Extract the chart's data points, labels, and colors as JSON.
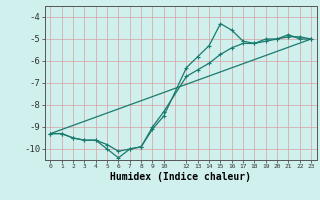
{
  "xlabel": "Humidex (Indice chaleur)",
  "ylabel": "",
  "xlim": [
    -0.5,
    23.5
  ],
  "ylim": [
    -10.5,
    -3.5
  ],
  "background_color": "#cff0ec",
  "grid_color": "#d9a0a0",
  "line_color": "#1a7a6e",
  "line1_x": [
    0,
    1,
    2,
    3,
    4,
    5,
    6,
    7,
    8,
    9,
    10,
    12,
    13,
    14,
    15,
    16,
    17,
    18,
    19,
    20,
    21,
    22,
    23
  ],
  "line1_y": [
    -9.3,
    -9.3,
    -9.5,
    -9.6,
    -9.6,
    -10.0,
    -10.4,
    -10.0,
    -9.9,
    -9.1,
    -8.5,
    -6.3,
    -5.8,
    -5.3,
    -4.3,
    -4.6,
    -5.1,
    -5.2,
    -5.0,
    -5.0,
    -4.8,
    -5.0,
    -5.0
  ],
  "line2_x": [
    0,
    1,
    2,
    3,
    4,
    5,
    6,
    7,
    8,
    9,
    10,
    12,
    13,
    14,
    15,
    16,
    17,
    18,
    19,
    20,
    21,
    22,
    23
  ],
  "line2_y": [
    -9.3,
    -9.3,
    -9.5,
    -9.6,
    -9.6,
    -9.8,
    -10.1,
    -10.0,
    -9.9,
    -9.0,
    -8.3,
    -6.7,
    -6.4,
    -6.1,
    -5.7,
    -5.4,
    -5.2,
    -5.2,
    -5.1,
    -5.0,
    -4.9,
    -4.9,
    -5.0
  ],
  "line3_x": [
    0,
    23
  ],
  "line3_y": [
    -9.3,
    -5.0
  ],
  "xtick_positions": [
    0,
    1,
    2,
    3,
    4,
    5,
    6,
    7,
    8,
    9,
    10,
    12,
    13,
    14,
    15,
    16,
    17,
    18,
    19,
    20,
    21,
    22,
    23
  ],
  "xtick_labels": [
    "0",
    "1",
    "2",
    "3",
    "4",
    "5",
    "6",
    "7",
    "8",
    "9",
    "10",
    "12",
    "13",
    "14",
    "15",
    "16",
    "17",
    "18",
    "19",
    "20",
    "21",
    "22",
    "23"
  ],
  "ytick_positions": [
    -4,
    -5,
    -6,
    -7,
    -8,
    -9,
    -10
  ],
  "ytick_labels": [
    "-4",
    "-5",
    "-6",
    "-7",
    "-8",
    "-9",
    "-10"
  ]
}
